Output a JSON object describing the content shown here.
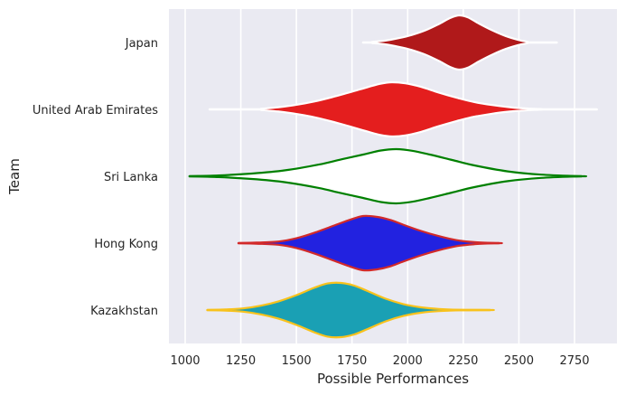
{
  "chart_data": {
    "type": "violin",
    "orientation": "horizontal",
    "xlabel": "Possible Performances",
    "ylabel": "Team",
    "xlim": [
      925,
      2900
    ],
    "xticks": [
      1000,
      1250,
      1500,
      1750,
      2000,
      2250,
      2500,
      2750
    ],
    "grid": true,
    "background": "#eaeaf2",
    "categories": [
      "Japan",
      "United Arab Emirates",
      "Sri Lanka",
      "Hong Kong",
      "Kazakhstan"
    ],
    "violins": [
      {
        "name": "Japan",
        "whisker": [
          1800,
          2670
        ],
        "fill": "#b0191a",
        "edge": "#ffffff",
        "whisker_color": "#ffffff",
        "density_x": [
          1840,
          1900,
          1960,
          2020,
          2080,
          2140,
          2190,
          2230,
          2270,
          2320,
          2380,
          2440,
          2500,
          2540
        ],
        "density_w": [
          0.02,
          0.07,
          0.16,
          0.28,
          0.45,
          0.68,
          0.9,
          1.0,
          0.93,
          0.7,
          0.45,
          0.24,
          0.09,
          0.02
        ]
      },
      {
        "name": "United Arab Emirates",
        "whisker": [
          1110,
          2850
        ],
        "fill": "#e41e1e",
        "edge": "#ffffff",
        "whisker_color": "#ffffff",
        "density_x": [
          1340,
          1420,
          1500,
          1580,
          1660,
          1740,
          1820,
          1880,
          1930,
          1990,
          2060,
          2140,
          2220,
          2300,
          2380,
          2460,
          2540,
          2600
        ],
        "density_w": [
          0.02,
          0.08,
          0.17,
          0.29,
          0.45,
          0.63,
          0.82,
          0.95,
          1.0,
          0.96,
          0.83,
          0.62,
          0.43,
          0.27,
          0.16,
          0.08,
          0.03,
          0.01
        ]
      },
      {
        "name": "Sri Lanka",
        "whisker": [
          1020,
          2780
        ],
        "fill": "#ffffff",
        "edge": "#008000",
        "whisker_color": "#008000",
        "density_x": [
          1020,
          1150,
          1300,
          1450,
          1600,
          1700,
          1800,
          1880,
          1950,
          2020,
          2100,
          2200,
          2300,
          2450,
          2600,
          2780
        ],
        "density_w": [
          0.0,
          0.03,
          0.1,
          0.22,
          0.43,
          0.62,
          0.8,
          0.95,
          1.0,
          0.94,
          0.8,
          0.6,
          0.4,
          0.18,
          0.06,
          0.0
        ]
      },
      {
        "name": "Hong Kong",
        "whisker": [
          1240,
          2410
        ],
        "fill": "#2222e0",
        "edge": "#d22a2a",
        "whisker_color": "#d22a2a",
        "density_x": [
          1240,
          1320,
          1420,
          1500,
          1580,
          1660,
          1740,
          1800,
          1860,
          1920,
          1980,
          2060,
          2140,
          2220,
          2300,
          2410
        ],
        "density_w": [
          0.0,
          0.02,
          0.06,
          0.18,
          0.38,
          0.62,
          0.86,
          1.0,
          0.97,
          0.86,
          0.68,
          0.45,
          0.26,
          0.11,
          0.04,
          0.0
        ]
      },
      {
        "name": "Kazakhstan",
        "whisker": [
          1100,
          2370
        ],
        "fill": "#1aa0b4",
        "edge": "#f8c21c",
        "whisker_color": "#f8c21c",
        "density_x": [
          1100,
          1180,
          1260,
          1340,
          1420,
          1500,
          1580,
          1640,
          1700,
          1760,
          1820,
          1900,
          1980,
          2060,
          2140,
          2230,
          2370
        ],
        "density_w": [
          0.0,
          0.02,
          0.06,
          0.16,
          0.32,
          0.55,
          0.82,
          0.98,
          1.0,
          0.9,
          0.7,
          0.42,
          0.22,
          0.1,
          0.04,
          0.01,
          0.0
        ]
      }
    ]
  }
}
